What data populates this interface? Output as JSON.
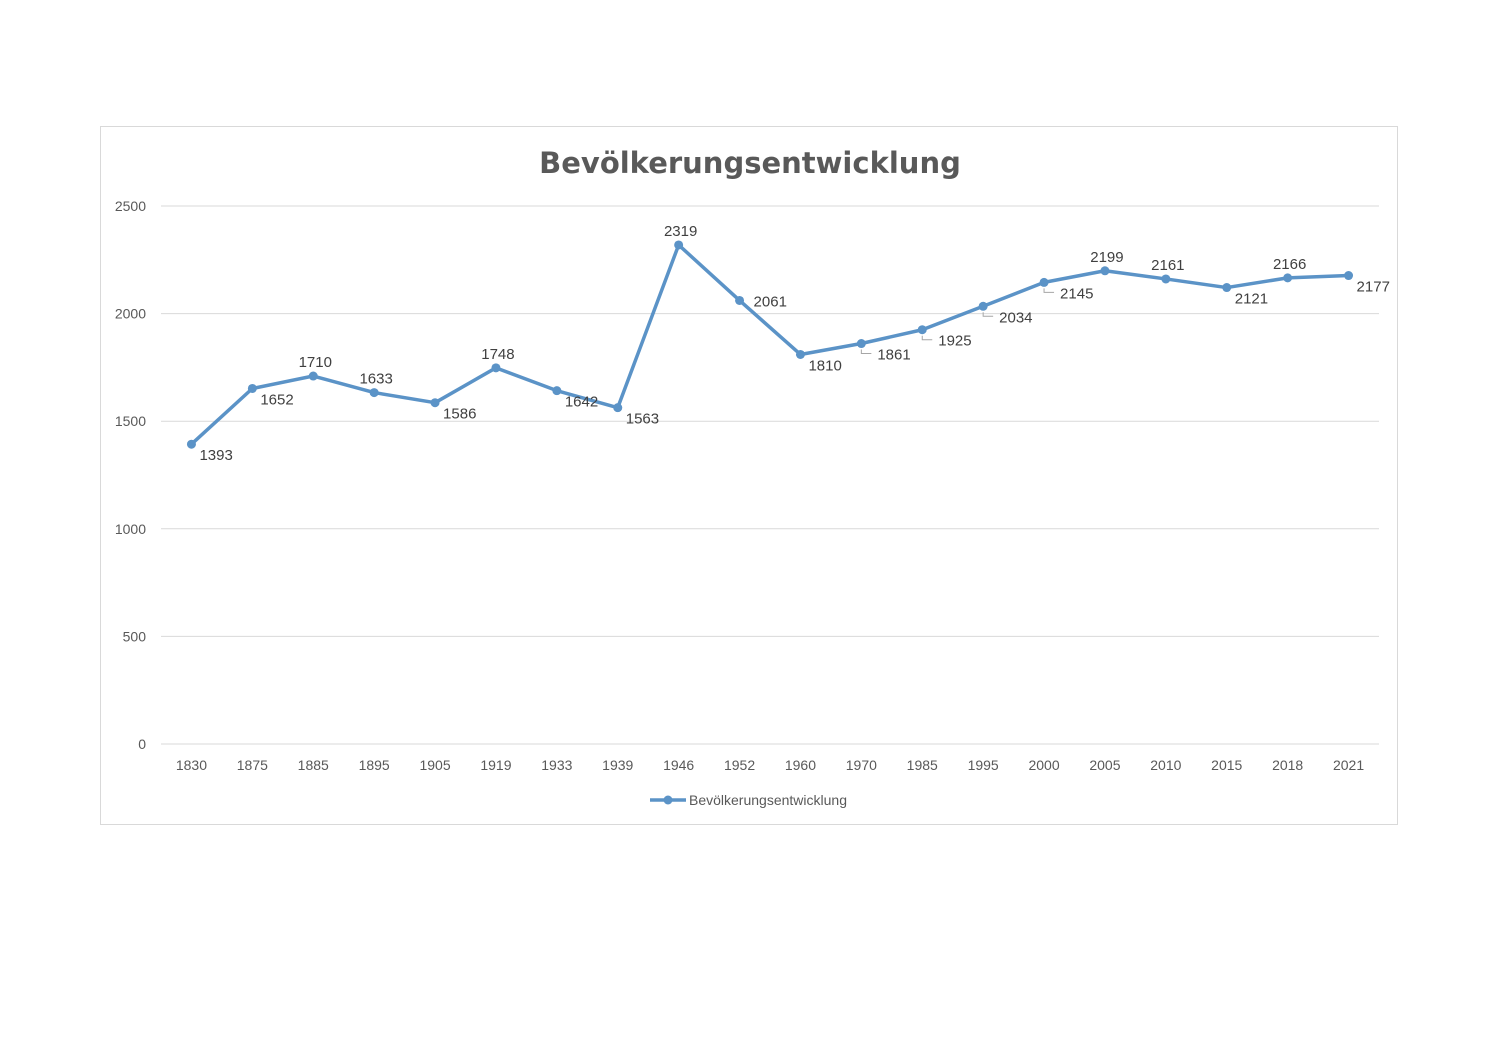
{
  "chart_data": {
    "type": "line",
    "title": "Bevölkerungsentwicklung",
    "categories": [
      "1830",
      "1875",
      "1885",
      "1895",
      "1905",
      "1919",
      "1933",
      "1939",
      "1946",
      "1952",
      "1960",
      "1970",
      "1985",
      "1995",
      "2000",
      "2005",
      "2010",
      "2015",
      "2018",
      "2021"
    ],
    "series": [
      {
        "name": "Bevölkerungsentwicklung",
        "values": [
          1393,
          1652,
          1710,
          1633,
          1586,
          1748,
          1642,
          1563,
          2319,
          2061,
          1810,
          1861,
          1925,
          2034,
          2145,
          2199,
          2161,
          2121,
          2166,
          2177
        ],
        "color": "#5b93c7"
      }
    ],
    "ylim": [
      0,
      2500
    ],
    "yticks": [
      0,
      500,
      1000,
      1500,
      2000,
      2500
    ],
    "grid": true,
    "legend_position": "bottom"
  }
}
